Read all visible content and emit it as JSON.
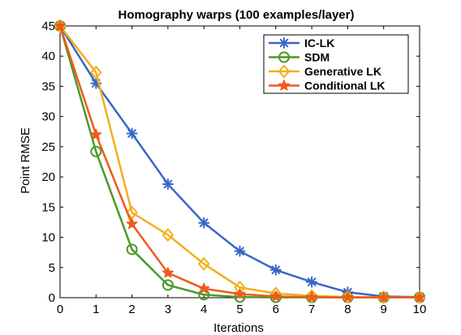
{
  "chart_data": {
    "type": "line",
    "title": "Homography warps (100 examples/layer)",
    "xlabel": "Iterations",
    "ylabel": "Point RMSE",
    "xlim": [
      0,
      10
    ],
    "ylim": [
      0,
      45
    ],
    "xticks": [
      0,
      1,
      2,
      3,
      4,
      5,
      6,
      7,
      8,
      9,
      10
    ],
    "yticks": [
      0,
      5,
      10,
      15,
      20,
      25,
      30,
      35,
      40,
      45
    ],
    "legend_position": "top-right",
    "grid": false,
    "x": [
      0,
      1,
      2,
      3,
      4,
      5,
      6,
      7,
      8,
      9,
      10
    ],
    "series": [
      {
        "name": "IC-LK",
        "color": "#3a66c8",
        "marker": "asterisk",
        "values": [
          45,
          35.5,
          27.2,
          18.8,
          12.4,
          7.7,
          4.6,
          2.6,
          0.9,
          0.2,
          0.1
        ]
      },
      {
        "name": "SDM",
        "color": "#4a9a2a",
        "marker": "circle",
        "values": [
          45,
          24.2,
          8.0,
          2.1,
          0.5,
          0.1,
          0.05,
          0.05,
          0.05,
          0.05,
          0.05
        ]
      },
      {
        "name": "Generative LK",
        "color": "#f2b01a",
        "marker": "diamond",
        "values": [
          45,
          37.3,
          14.1,
          10.4,
          5.6,
          1.7,
          0.7,
          0.3,
          0.1,
          0.05,
          0.05
        ]
      },
      {
        "name": "Conditional LK",
        "color": "#ef5a1a",
        "marker": "star",
        "values": [
          45,
          27.0,
          12.2,
          4.1,
          1.5,
          0.6,
          0.2,
          0.1,
          0.05,
          0.05,
          0.05
        ]
      }
    ]
  }
}
